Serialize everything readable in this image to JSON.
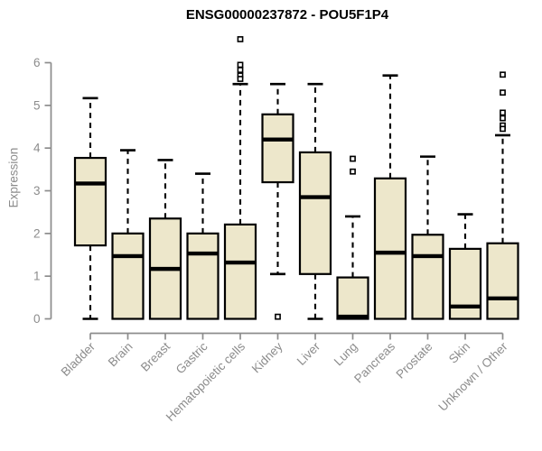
{
  "chart_data": {
    "type": "boxplot",
    "title": "ENSG00000237872 - POU5F1P4",
    "ylabel": "Expression",
    "xlabel": "",
    "ylim": [
      0,
      6.7
    ],
    "yticks": [
      0,
      1,
      2,
      3,
      4,
      5,
      6
    ],
    "grid": false,
    "legend": "none",
    "colors": {
      "box_fill": "#EDE7CB",
      "box_stroke": "#000000",
      "axis": "#8C8C8C",
      "title": "#000000",
      "background": "#FFFFFF"
    },
    "categories": [
      "Bladder",
      "Brain",
      "Breast",
      "Gastric",
      "Hematopoietic cells",
      "Kidney",
      "Liver",
      "Lung",
      "Pancreas",
      "Prostate",
      "Skin",
      "Unknown / Other"
    ],
    "boxes": [
      {
        "category": "Bladder",
        "low": 0,
        "q1": 1.72,
        "median": 3.17,
        "q3": 3.77,
        "high": 5.17,
        "outliers": []
      },
      {
        "category": "Brain",
        "low": 0,
        "q1": 0,
        "median": 1.47,
        "q3": 2.0,
        "high": 3.95,
        "outliers": []
      },
      {
        "category": "Breast",
        "low": 0,
        "q1": 0,
        "median": 1.17,
        "q3": 2.35,
        "high": 3.72,
        "outliers": []
      },
      {
        "category": "Gastric",
        "low": 0,
        "q1": 0,
        "median": 1.53,
        "q3": 2.0,
        "high": 3.4,
        "outliers": []
      },
      {
        "category": "Hematopoietic cells",
        "low": 0,
        "q1": 0,
        "median": 1.32,
        "q3": 2.21,
        "high": 5.5,
        "outliers": [
          6.55,
          5.95,
          5.83,
          5.7,
          5.62
        ]
      },
      {
        "category": "Kidney",
        "low": 1.05,
        "q1": 3.2,
        "median": 4.2,
        "q3": 4.79,
        "high": 5.5,
        "outliers": [
          0.05
        ]
      },
      {
        "category": "Liver",
        "low": 0,
        "q1": 1.05,
        "median": 2.85,
        "q3": 3.9,
        "high": 5.5,
        "outliers": []
      },
      {
        "category": "Lung",
        "low": 0,
        "q1": 0,
        "median": 0.05,
        "q3": 0.97,
        "high": 2.4,
        "outliers": [
          3.75,
          3.45
        ]
      },
      {
        "category": "Pancreas",
        "low": 0,
        "q1": 0,
        "median": 1.55,
        "q3": 3.29,
        "high": 5.7,
        "outliers": []
      },
      {
        "category": "Prostate",
        "low": 0,
        "q1": 0,
        "median": 1.47,
        "q3": 1.97,
        "high": 3.8,
        "outliers": []
      },
      {
        "category": "Skin",
        "low": 0,
        "q1": 0,
        "median": 0.29,
        "q3": 1.64,
        "high": 2.45,
        "outliers": []
      },
      {
        "category": "Unknown / Other",
        "low": 0,
        "q1": 0,
        "median": 0.48,
        "q3": 1.77,
        "high": 4.3,
        "outliers": [
          5.72,
          5.3,
          4.83,
          4.7,
          4.53,
          4.45
        ]
      }
    ]
  }
}
